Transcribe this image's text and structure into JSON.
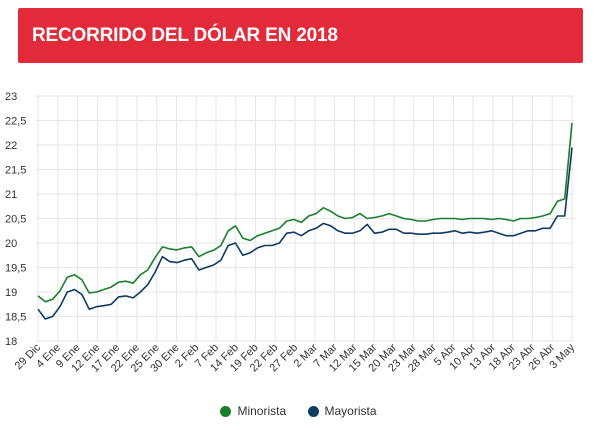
{
  "header": {
    "title": "RECORRIDO DEL DÓLAR EN 2018"
  },
  "colors": {
    "header_bg": "#e22a3a",
    "minorista": "#1a7f2a",
    "mayorista": "#0f3a64",
    "grid": "#e6e6e6"
  },
  "legend": {
    "minorista": "Minorista",
    "mayorista": "Mayorista"
  },
  "chart_data": {
    "type": "line",
    "title": "RECORRIDO DEL DÓLAR EN 2018",
    "ylim": [
      18,
      23
    ],
    "yticks": [
      "23",
      "22,5",
      "22",
      "21,5",
      "21",
      "20,5",
      "20",
      "19,5",
      "19",
      "18,5",
      "18"
    ],
    "x_tick_labels": [
      "29 Dic",
      "4 Ene",
      "9 Ene",
      "12 Ene",
      "17 Ene",
      "22 Ene",
      "25 Ene",
      "30 Ene",
      "2 Feb",
      "7 Feb",
      "14 Feb",
      "19 Feb",
      "22 Feb",
      "27 Feb",
      "2 Mar",
      "7 Mar",
      "12 Mar",
      "15 Mar",
      "20 Mar",
      "23 Mar",
      "28 Mar",
      "5 Abr",
      "10 Abr",
      "13 Abr",
      "18 Abr",
      "23 Abr",
      "26 Abr",
      "3 May"
    ],
    "grid": true,
    "legend_position": "bottom",
    "series": [
      {
        "name": "Minorista",
        "color": "#1a7f2a",
        "values": [
          18.92,
          18.8,
          18.85,
          19.02,
          19.3,
          19.35,
          19.25,
          18.98,
          19.0,
          19.05,
          19.1,
          19.2,
          19.22,
          19.18,
          19.35,
          19.45,
          19.7,
          19.92,
          19.88,
          19.86,
          19.9,
          19.92,
          19.72,
          19.8,
          19.85,
          19.95,
          20.25,
          20.35,
          20.1,
          20.05,
          20.15,
          20.2,
          20.25,
          20.3,
          20.45,
          20.48,
          20.42,
          20.55,
          20.6,
          20.72,
          20.65,
          20.55,
          20.5,
          20.52,
          20.6,
          20.5,
          20.52,
          20.55,
          20.6,
          20.55,
          20.5,
          20.48,
          20.45,
          20.45,
          20.48,
          20.5,
          20.5,
          20.5,
          20.48,
          20.5,
          20.5,
          20.5,
          20.48,
          20.5,
          20.48,
          20.45,
          20.5,
          20.5,
          20.52,
          20.55,
          20.6,
          20.85,
          20.9,
          22.45
        ]
      },
      {
        "name": "Mayorista",
        "color": "#0f3a64",
        "values": [
          18.65,
          18.45,
          18.5,
          18.7,
          19.0,
          19.05,
          18.95,
          18.65,
          18.7,
          18.72,
          18.75,
          18.9,
          18.92,
          18.88,
          19.0,
          19.15,
          19.4,
          19.72,
          19.62,
          19.6,
          19.65,
          19.68,
          19.45,
          19.5,
          19.55,
          19.65,
          19.95,
          20.0,
          19.75,
          19.8,
          19.9,
          19.95,
          19.95,
          20.0,
          20.2,
          20.22,
          20.15,
          20.25,
          20.3,
          20.4,
          20.35,
          20.25,
          20.2,
          20.2,
          20.25,
          20.38,
          20.2,
          20.22,
          20.28,
          20.28,
          20.2,
          20.2,
          20.18,
          20.18,
          20.2,
          20.2,
          20.22,
          20.25,
          20.2,
          20.22,
          20.2,
          20.22,
          20.25,
          20.2,
          20.15,
          20.15,
          20.2,
          20.25,
          20.25,
          20.3,
          20.3,
          20.55,
          20.55,
          21.95
        ]
      }
    ]
  }
}
